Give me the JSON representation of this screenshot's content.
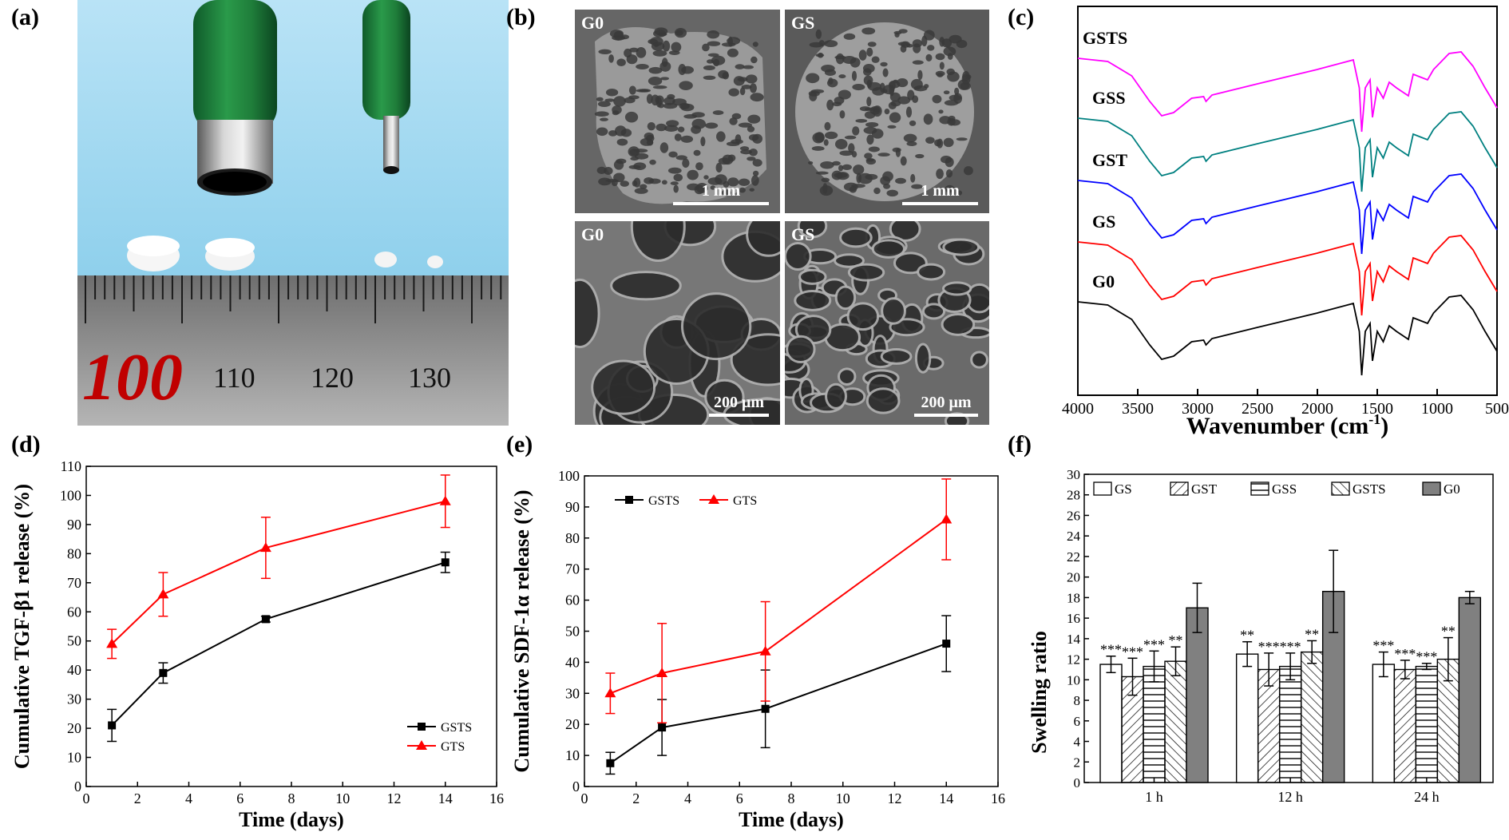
{
  "panels": {
    "a": {
      "label": "(a)",
      "ruler_numbers": [
        "100",
        "110",
        "120",
        "130"
      ]
    },
    "b": {
      "label": "(b)",
      "images": [
        {
          "sample": "G0",
          "scale": "1 mm"
        },
        {
          "sample": "GS",
          "scale": "1 mm"
        },
        {
          "sample": "G0",
          "scale": "200 μm"
        },
        {
          "sample": "GS",
          "scale": "200 μm"
        }
      ]
    },
    "c": {
      "label": "(c)"
    },
    "d": {
      "label": "(d)"
    },
    "e": {
      "label": "(e)"
    },
    "f": {
      "label": "(f)"
    }
  },
  "colors": {
    "black": "#000000",
    "red": "#ff0000",
    "blue": "#0000ff",
    "teal": "#008080",
    "magenta": "#ff00ff",
    "gray_bar": "#808080"
  },
  "chart_data": [
    {
      "id": "c",
      "type": "line",
      "xlabel": "Wavenumber (cm",
      "xlabel_sup": "-1",
      "xlabel_end": ")",
      "xlim": [
        4000,
        500
      ],
      "xticks": [
        4000,
        3500,
        3000,
        2500,
        2000,
        1500,
        1000,
        500
      ],
      "ylabel": "",
      "grid": false,
      "series": [
        {
          "name": "GSTS",
          "color": "#ff00ff",
          "offset": 4
        },
        {
          "name": "GSS",
          "color": "#008080",
          "offset": 3
        },
        {
          "name": "GST",
          "color": "#0000ff",
          "offset": 2
        },
        {
          "name": "GS",
          "color": "#ff0000",
          "offset": 1
        },
        {
          "name": "G0",
          "color": "#000000",
          "offset": 0
        }
      ],
      "spectrum_shape": [
        [
          4000,
          0.92
        ],
        [
          3750,
          0.88
        ],
        [
          3550,
          0.7
        ],
        [
          3400,
          0.38
        ],
        [
          3300,
          0.2
        ],
        [
          3200,
          0.24
        ],
        [
          3050,
          0.42
        ],
        [
          2950,
          0.44
        ],
        [
          2930,
          0.38
        ],
        [
          2880,
          0.46
        ],
        [
          2500,
          0.6
        ],
        [
          2000,
          0.78
        ],
        [
          1700,
          0.9
        ],
        [
          1650,
          0.55
        ],
        [
          1630,
          0.0
        ],
        [
          1600,
          0.55
        ],
        [
          1560,
          0.65
        ],
        [
          1540,
          0.18
        ],
        [
          1500,
          0.55
        ],
        [
          1450,
          0.42
        ],
        [
          1400,
          0.62
        ],
        [
          1340,
          0.55
        ],
        [
          1240,
          0.45
        ],
        [
          1200,
          0.72
        ],
        [
          1080,
          0.65
        ],
        [
          1030,
          0.78
        ],
        [
          900,
          0.98
        ],
        [
          800,
          1.0
        ],
        [
          700,
          0.82
        ],
        [
          600,
          0.55
        ],
        [
          500,
          0.3
        ]
      ]
    },
    {
      "id": "d",
      "type": "line",
      "xlabel": "Time (days)",
      "ylabel": "Cumulative TGF-β1 release (%)",
      "xlim": [
        0,
        16
      ],
      "ylim": [
        0,
        110
      ],
      "xticks": [
        0,
        2,
        4,
        6,
        8,
        10,
        12,
        14,
        16
      ],
      "yticks": [
        0,
        10,
        20,
        30,
        40,
        50,
        60,
        70,
        80,
        90,
        100,
        110
      ],
      "legend": "bottom-right",
      "series": [
        {
          "name": "GSTS",
          "color": "#000000",
          "marker": "square",
          "x": [
            1,
            3,
            7,
            14
          ],
          "y": [
            21,
            39,
            57.5,
            77
          ],
          "err": [
            5.5,
            3.5,
            1,
            3.5
          ]
        },
        {
          "name": "GTS",
          "color": "#ff0000",
          "marker": "triangle",
          "x": [
            1,
            3,
            7,
            14
          ],
          "y": [
            49,
            66,
            82,
            98
          ],
          "err": [
            5,
            7.5,
            10.5,
            9
          ]
        }
      ]
    },
    {
      "id": "e",
      "type": "line",
      "xlabel": "Time (days)",
      "ylabel": "Cumulative SDF-1α  release (%)",
      "xlim": [
        0,
        16
      ],
      "ylim": [
        0,
        100
      ],
      "xticks": [
        0,
        2,
        4,
        6,
        8,
        10,
        12,
        14,
        16
      ],
      "yticks": [
        0,
        10,
        20,
        30,
        40,
        50,
        60,
        70,
        80,
        90,
        100
      ],
      "legend": "top-left",
      "series": [
        {
          "name": "GSTS",
          "color": "#000000",
          "marker": "square",
          "x": [
            1,
            3,
            7,
            14
          ],
          "y": [
            7.5,
            19,
            25,
            46
          ],
          "err": [
            3.5,
            9,
            12.5,
            9
          ]
        },
        {
          "name": "GTS",
          "color": "#ff0000",
          "marker": "triangle",
          "x": [
            1,
            3,
            7,
            14
          ],
          "y": [
            30,
            36.5,
            43.5,
            86
          ],
          "err": [
            6.5,
            16,
            16,
            13
          ]
        }
      ]
    },
    {
      "id": "f",
      "type": "bar",
      "xlabel": "",
      "ylabel": "Swelling ratio",
      "ylim": [
        0,
        30
      ],
      "yticks": [
        0,
        2,
        4,
        6,
        8,
        10,
        12,
        14,
        16,
        18,
        20,
        22,
        24,
        26,
        28,
        30
      ],
      "categories": [
        "1 h",
        "12 h",
        "24 h"
      ],
      "legend": "top",
      "series": [
        {
          "name": "GS",
          "pattern": "empty",
          "values": [
            11.5,
            12.5,
            11.5
          ],
          "err": [
            0.8,
            1.2,
            1.2
          ],
          "sig": [
            "***",
            "**",
            "***"
          ]
        },
        {
          "name": "GST",
          "pattern": "diag",
          "values": [
            10.3,
            11,
            11
          ],
          "err": [
            1.8,
            1.6,
            0.9
          ],
          "sig": [
            "***",
            "***",
            "***"
          ]
        },
        {
          "name": "GSS",
          "pattern": "horiz",
          "values": [
            11.3,
            11.3,
            11.3
          ],
          "err": [
            1.5,
            1.3,
            0.3
          ],
          "sig": [
            "***",
            "***",
            "***"
          ]
        },
        {
          "name": "GSTS",
          "pattern": "backdiag",
          "values": [
            11.8,
            12.7,
            12
          ],
          "err": [
            1.4,
            1.1,
            2.1
          ],
          "sig": [
            "**",
            "**",
            "**"
          ]
        },
        {
          "name": "G0",
          "pattern": "gray",
          "values": [
            17,
            18.6,
            18
          ],
          "err": [
            2.4,
            4,
            0.6
          ],
          "sig": [
            "",
            "",
            ""
          ]
        }
      ]
    }
  ]
}
